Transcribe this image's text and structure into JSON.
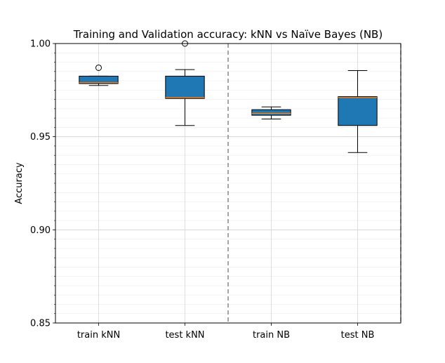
{
  "chart_data": {
    "type": "box",
    "title": "Training and Validation accuracy: kNN vs Naïve Bayes (NB)",
    "xlabel": "",
    "ylabel": "Accuracy",
    "ylim": [
      0.85,
      1.0
    ],
    "y_ticks": [
      0.85,
      0.9,
      0.95,
      1.0
    ],
    "y_tick_labels": [
      "0.85",
      "0.90",
      "0.95",
      "1.00"
    ],
    "y_minor_step": 0.005,
    "grid": true,
    "categories": [
      "train kNN",
      "test kNN",
      "train NB",
      "test NB"
    ],
    "boxes": [
      {
        "whisker_low": 0.9775,
        "q1": 0.9785,
        "median": 0.979,
        "q3": 0.9825,
        "whisker_high": 0.9825,
        "outliers": [
          0.987
        ]
      },
      {
        "whisker_low": 0.956,
        "q1": 0.9705,
        "median": 0.971,
        "q3": 0.9825,
        "whisker_high": 0.986,
        "outliers": [
          1.0
        ]
      },
      {
        "whisker_low": 0.9595,
        "q1": 0.9615,
        "median": 0.9625,
        "q3": 0.9645,
        "whisker_high": 0.966,
        "outliers": []
      },
      {
        "whisker_low": 0.9415,
        "q1": 0.956,
        "median": 0.971,
        "q3": 0.9715,
        "whisker_high": 0.9855,
        "outliers": []
      }
    ],
    "separator_between": [
      1,
      3
    ],
    "box_color": "#1f77b4",
    "median_color": "#ff7f0e",
    "separator_color": "#808080"
  }
}
